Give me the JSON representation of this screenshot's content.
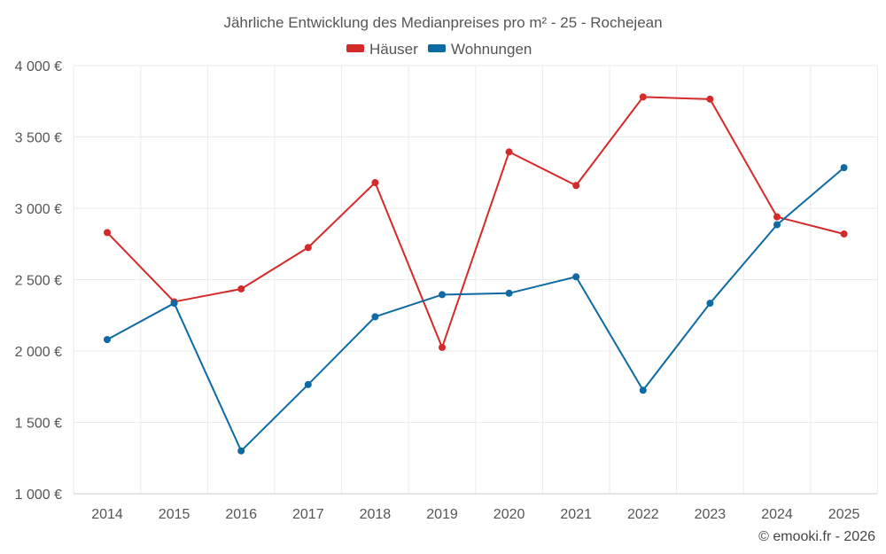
{
  "chart_data": {
    "type": "line",
    "title": "Jährliche Entwicklung des Medianpreises pro m² - 25 - Rochejean",
    "categories": [
      "2014",
      "2015",
      "2016",
      "2017",
      "2018",
      "2019",
      "2020",
      "2021",
      "2022",
      "2023",
      "2024",
      "2025"
    ],
    "series": [
      {
        "name": "Häuser",
        "color": "#d42a2a",
        "values": [
          2830,
          2345,
          2435,
          2725,
          3180,
          2025,
          3395,
          3160,
          3780,
          3765,
          2940,
          2820
        ]
      },
      {
        "name": "Wohnungen",
        "color": "#0e6aa3",
        "values": [
          2080,
          2335,
          1300,
          1765,
          2240,
          2395,
          2405,
          2520,
          1725,
          2335,
          2885,
          3285
        ]
      }
    ],
    "ylim": [
      1000,
      4000
    ],
    "yticks": [
      1000,
      1500,
      2000,
      2500,
      3000,
      3500,
      4000
    ],
    "ytick_labels": [
      "1 000 €",
      "1 500 €",
      "2 000 €",
      "2 500 €",
      "3 000 €",
      "3 500 €",
      "4 000 €"
    ],
    "xlabel": "",
    "ylabel": "",
    "grid": true,
    "legend_position": "top-center"
  },
  "credit": "© emooki.fr - 2026"
}
